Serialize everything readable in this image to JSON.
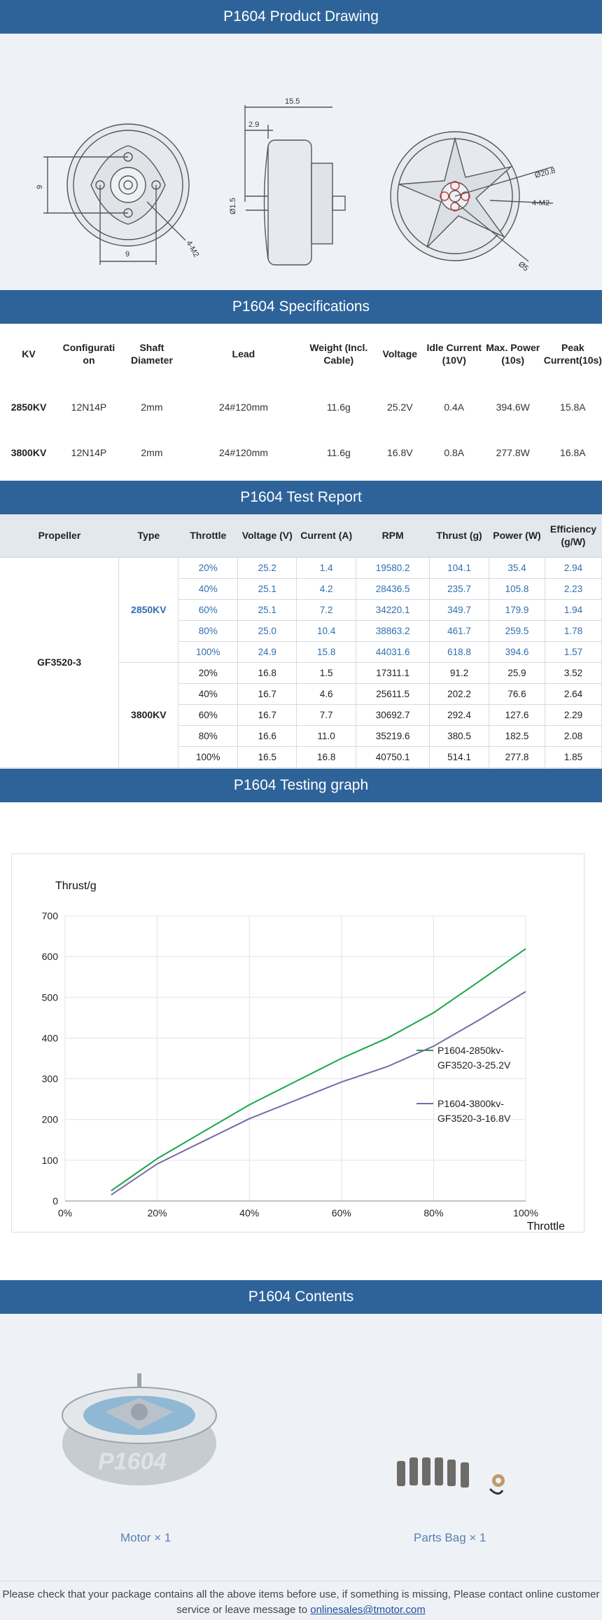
{
  "drawing": {
    "title": "P1604 Product Drawing",
    "dims": {
      "d1": "15.5",
      "d2": "2.9",
      "d3": "Ø1.5",
      "d4": "Ø20.8",
      "d5": "4-M2",
      "d6": "Ø5",
      "d7": "9",
      "d8": "9",
      "d9": "4-M2"
    }
  },
  "specs": {
    "title": "P1604 Specifications",
    "headers": [
      "KV",
      "Configurati on",
      "Shaft Diameter",
      "Lead",
      "Weight (Incl. Cable)",
      "Voltage",
      "Idle Current (10V)",
      "Max. Power (10s)",
      "Peak Current(10s)"
    ],
    "rows": [
      [
        "2850KV",
        "12N14P",
        "2mm",
        "24#120mm",
        "11.6g",
        "25.2V",
        "0.4A",
        "394.6W",
        "15.8A"
      ],
      [
        "3800KV",
        "12N14P",
        "2mm",
        "24#120mm",
        "11.6g",
        "16.8V",
        "0.8A",
        "277.8W",
        "16.8A"
      ]
    ]
  },
  "report": {
    "title": "P1604 Test Report",
    "headers": [
      "Propeller",
      "Type",
      "Throttle",
      "Voltage (V)",
      "Current (A)",
      "RPM",
      "Thrust (g)",
      "Power (W)",
      "Efficiency (g/W)"
    ],
    "propeller": "GF3520-3",
    "types": [
      "2850KV",
      "3800KV"
    ],
    "rows_2850": [
      [
        "20%",
        "25.2",
        "1.4",
        "19580.2",
        "104.1",
        "35.4",
        "2.94"
      ],
      [
        "40%",
        "25.1",
        "4.2",
        "28436.5",
        "235.7",
        "105.8",
        "2.23"
      ],
      [
        "60%",
        "25.1",
        "7.2",
        "34220.1",
        "349.7",
        "179.9",
        "1.94"
      ],
      [
        "80%",
        "25.0",
        "10.4",
        "38863.2",
        "461.7",
        "259.5",
        "1.78"
      ],
      [
        "100%",
        "24.9",
        "15.8",
        "44031.6",
        "618.8",
        "394.6",
        "1.57"
      ]
    ],
    "rows_3800": [
      [
        "20%",
        "16.8",
        "1.5",
        "17311.1",
        "91.2",
        "25.9",
        "3.52"
      ],
      [
        "40%",
        "16.7",
        "4.6",
        "25611.5",
        "202.2",
        "76.6",
        "2.64"
      ],
      [
        "60%",
        "16.7",
        "7.7",
        "30692.7",
        "292.4",
        "127.6",
        "2.29"
      ],
      [
        "80%",
        "16.6",
        "11.0",
        "35219.6",
        "380.5",
        "182.5",
        "2.08"
      ],
      [
        "100%",
        "16.5",
        "16.8",
        "40750.1",
        "514.1",
        "277.8",
        "1.85"
      ]
    ],
    "colors": {
      "blue": "#2f6fb2"
    }
  },
  "graph": {
    "title": "P1604 Testing graph"
  },
  "chart_data": {
    "type": "line",
    "ylabel": "Thrust/g",
    "xlabel": "Throttle",
    "xlim": [
      0,
      100
    ],
    "ylim": [
      0,
      700
    ],
    "xticks": [
      "0%",
      "20%",
      "40%",
      "60%",
      "80%",
      "100%"
    ],
    "yticks": [
      "0",
      "100",
      "200",
      "300",
      "400",
      "500",
      "600",
      "700"
    ],
    "grid": true,
    "legend_position": "right",
    "series": [
      {
        "name": "P1604-2850kv-GF3520-3-25.2V",
        "color": "#1aa64a",
        "x": [
          10,
          20,
          40,
          60,
          70,
          80,
          90,
          100
        ],
        "y": [
          25,
          104,
          236,
          350,
          400,
          462,
          540,
          619
        ]
      },
      {
        "name": "P1604-3800kv-GF3520-3-16.8V",
        "color": "#7b68a8",
        "x": [
          10,
          20,
          40,
          60,
          70,
          80,
          90,
          100
        ],
        "y": [
          15,
          91,
          202,
          292,
          330,
          380,
          445,
          514
        ]
      }
    ]
  },
  "contents": {
    "title": "P1604 Contents",
    "items": [
      "Motor × 1",
      "Parts Bag × 1"
    ]
  },
  "footer": {
    "text": "Please check that your package contains all the above items before use, if something is missing, Please contact online customer service or leave message to",
    "email": "onlinesales@tmotor.com"
  }
}
